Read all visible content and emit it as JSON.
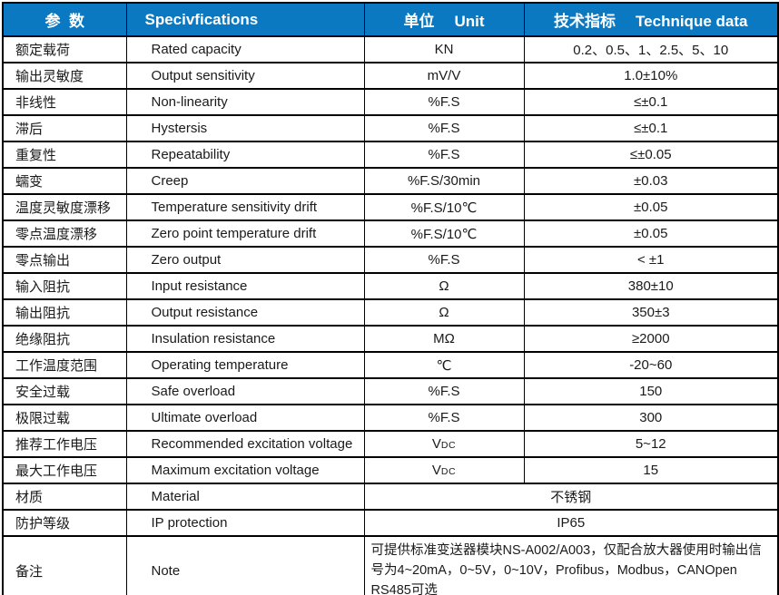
{
  "table": {
    "header": {
      "param_zh": "参  数",
      "spec_en": "Specivfications",
      "unit_zh": "单位",
      "unit_en": "Unit",
      "tech_zh": "技术指标",
      "tech_en": "Technique data"
    },
    "rows": [
      {
        "param": "额定载荷",
        "spec": "Rated capacity",
        "unit": "KN",
        "value": "0.2、0.5、1、2.5、5、10"
      },
      {
        "param": "输出灵敏度",
        "spec": "Output sensitivity",
        "unit": "mV/V",
        "value": "1.0±10%"
      },
      {
        "param": "非线性",
        "spec": "Non-linearity",
        "unit": "%F.S",
        "value": "≤±0.1"
      },
      {
        "param": "滞后",
        "spec": "Hystersis",
        "unit": "%F.S",
        "value": "≤±0.1"
      },
      {
        "param": "重复性",
        "spec": "Repeatability",
        "unit": "%F.S",
        "value": "≤±0.05"
      },
      {
        "param": "蠕变",
        "spec": "Creep",
        "unit": "%F.S/30min",
        "value": "±0.03"
      },
      {
        "param": "温度灵敏度漂移",
        "spec": "Temperature sensitivity drift",
        "unit": "%F.S/10℃",
        "value": "±0.05"
      },
      {
        "param": "零点温度漂移",
        "spec": "Zero point temperature drift",
        "unit": "%F.S/10℃",
        "value": "±0.05"
      },
      {
        "param": "零点输出",
        "spec": "Zero output",
        "unit": "%F.S",
        "value": "< ±1"
      },
      {
        "param": "输入阻抗",
        "spec": "Input resistance",
        "unit": "Ω",
        "value": "380±10"
      },
      {
        "param": "输出阻抗",
        "spec": "Output resistance",
        "unit": "Ω",
        "value": "350±3"
      },
      {
        "param": "绝缘阻抗",
        "spec": "Insulation resistance",
        "unit": "MΩ",
        "value": "≥2000"
      },
      {
        "param": "工作温度范围",
        "spec": "Operating temperature",
        "unit": "℃",
        "value": "-20~60"
      },
      {
        "param": "安全过载",
        "spec": "Safe overload",
        "unit": "%F.S",
        "value": "150"
      },
      {
        "param": "极限过载",
        "spec": "Ultimate overload",
        "unit": "%F.S",
        "value": "300"
      },
      {
        "param": "推荐工作电压",
        "spec": "Recommended excitation voltage",
        "unit": "V",
        "unit_sub": "DC",
        "value": "5~12"
      },
      {
        "param": "最大工作电压",
        "spec": "Maximum excitation voltage",
        "unit": "V",
        "unit_sub": "DC",
        "value": "15"
      },
      {
        "param": "材质",
        "spec": "Material",
        "merged_value": "不锈钢"
      },
      {
        "param": "防护等级",
        "spec": "IP protection",
        "merged_value": "IP65"
      },
      {
        "param": "备注",
        "spec": "Note",
        "merged_value": "可提供标准变送器模块NS-A002/A003，仅配合放大器使用时输出信号为4~20mA，0~5V，0~10V，Profibus，Modbus，CANOpen RS485可选"
      }
    ]
  },
  "colors": {
    "header_bg": "#0b79c2",
    "header_text": "#ffffff",
    "body_text": "#1a1a1a",
    "border": "#000000"
  }
}
